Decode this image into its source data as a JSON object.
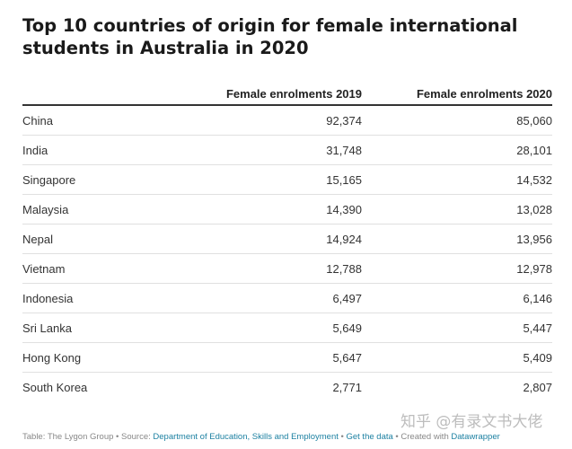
{
  "chart_data": {
    "type": "table",
    "title": "Top 10 countries of origin for female international students in Australia in 2020",
    "columns": [
      "",
      "Female enrolments 2019",
      "Female enrolments 2020"
    ],
    "rows": [
      {
        "country": "China",
        "v2019": "92,374",
        "v2020": "85,060"
      },
      {
        "country": "India",
        "v2019": "31,748",
        "v2020": "28,101"
      },
      {
        "country": "Singapore",
        "v2019": "15,165",
        "v2020": "14,532"
      },
      {
        "country": "Malaysia",
        "v2019": "14,390",
        "v2020": "13,028"
      },
      {
        "country": "Nepal",
        "v2019": "14,924",
        "v2020": "13,956"
      },
      {
        "country": "Vietnam",
        "v2019": "12,788",
        "v2020": "12,978"
      },
      {
        "country": "Indonesia",
        "v2019": "6,497",
        "v2020": "6,146"
      },
      {
        "country": "Sri Lanka",
        "v2019": "5,649",
        "v2020": "5,447"
      },
      {
        "country": "Hong Kong",
        "v2019": "5,647",
        "v2020": "5,409"
      },
      {
        "country": "South Korea",
        "v2019": "2,771",
        "v2020": "2,807"
      }
    ]
  },
  "footer": {
    "table_credit": "Table: The Lygon Group",
    "source_label": "Source:",
    "source_link": "Department of Education, Skills and Employment",
    "get_data": "Get the data",
    "created_with": "Created with",
    "tool": "Datawrapper",
    "sep": " • "
  },
  "watermark": "知乎 @有录文书大佬"
}
